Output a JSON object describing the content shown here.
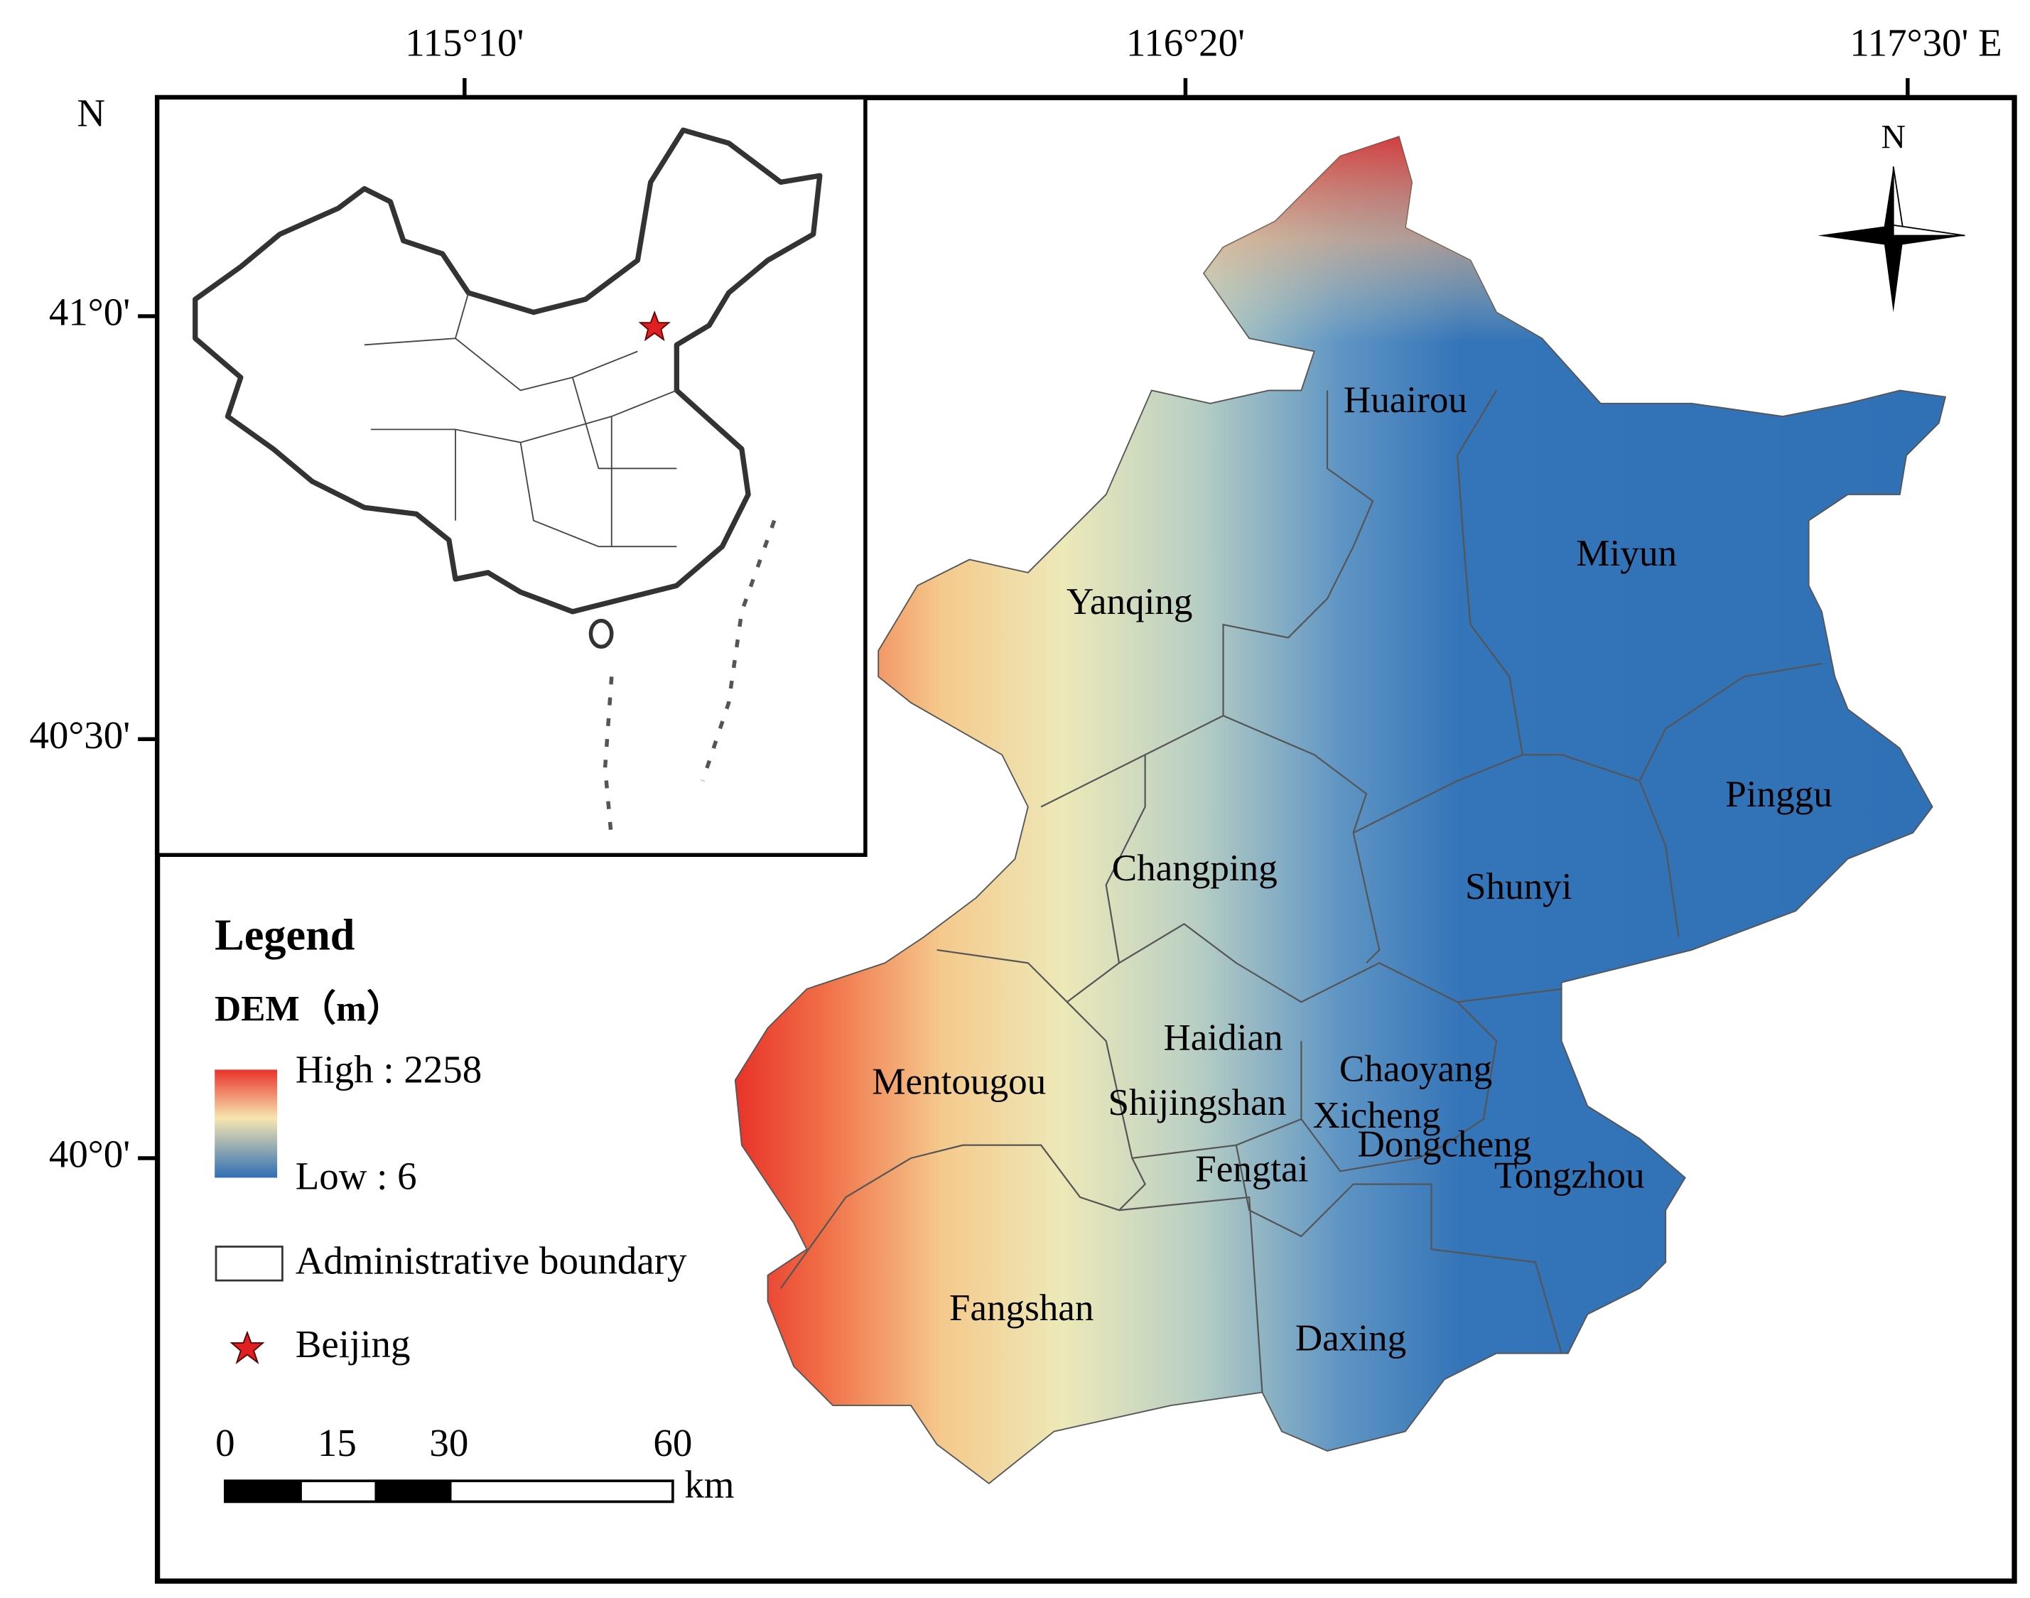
{
  "axes": {
    "top": [
      "115°10'",
      "116°20'",
      "117°30' E"
    ],
    "left": [
      "41°0'",
      "40°30'",
      "40°0'"
    ],
    "north_label": "N"
  },
  "north_arrow": "N",
  "legend": {
    "title": "Legend",
    "dem_title": "DEM（m）",
    "high": "High : 2258",
    "low": "Low : 6",
    "boundary": "Administrative boundary",
    "beijing": "Beijing"
  },
  "scale_bar": {
    "labels": [
      "0",
      "15",
      "30",
      "60"
    ],
    "unit": "km"
  },
  "districts": [
    "Huairou",
    "Miyun",
    "Yanqing",
    "Pinggu",
    "Changping",
    "Shunyi",
    "Haidian",
    "Chaoyang",
    "Mentougou",
    "Shijingshan",
    "Xicheng",
    "Dongcheng",
    "Fengtai",
    "Tongzhou",
    "Fangshan",
    "Daxing"
  ]
}
